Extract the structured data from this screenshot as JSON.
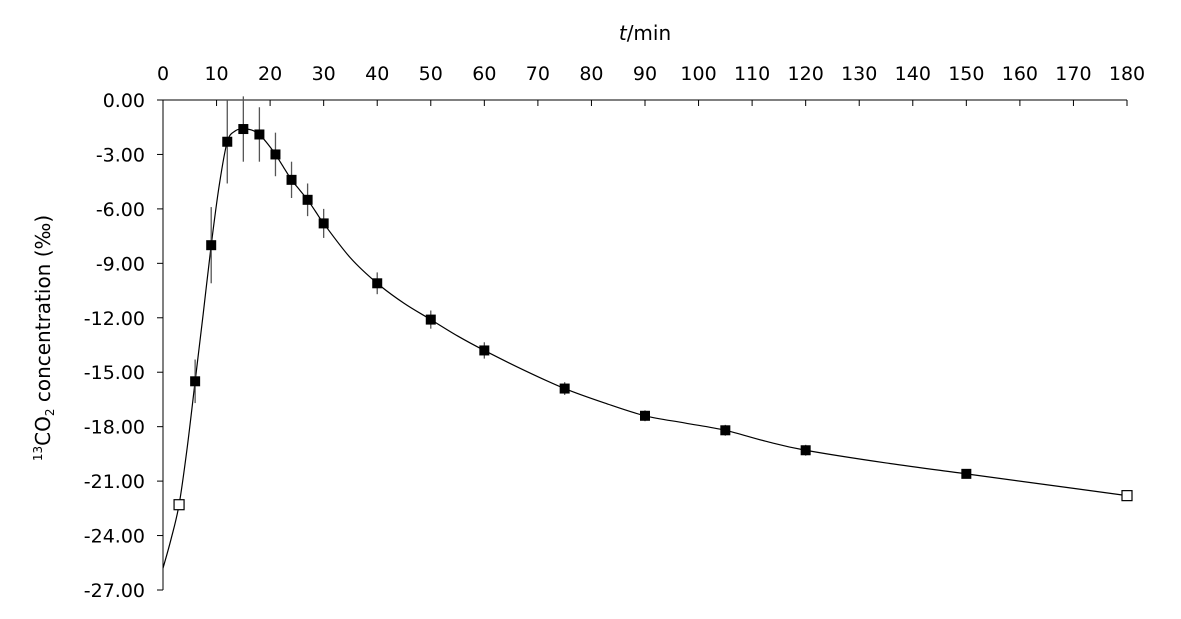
{
  "chart_data": {
    "type": "line",
    "xlabel": {
      "var": "t",
      "unit": "/min"
    },
    "ylabel": {
      "prefix": "13",
      "main": "CO",
      "sub": "2",
      "rest": " concentration (‰)"
    },
    "xlim": [
      0,
      180
    ],
    "ylim": [
      -27,
      0
    ],
    "x_ticks": [
      0,
      10,
      20,
      30,
      40,
      50,
      60,
      70,
      80,
      90,
      100,
      110,
      120,
      130,
      140,
      150,
      160,
      170,
      180
    ],
    "y_ticks": [
      0,
      -3,
      -6,
      -9,
      -12,
      -15,
      -18,
      -21,
      -24,
      -27
    ],
    "y_tick_labels": [
      "0.00",
      "-3.00",
      "-6.00",
      "-9.00",
      "-12.00",
      "-15.00",
      "-18.00",
      "-21.00",
      "-24.00",
      "-27.00"
    ],
    "series": [
      {
        "marker": "filled-square",
        "points": [
          {
            "x": 6,
            "y": -15.5,
            "err": 1.2
          },
          {
            "x": 9,
            "y": -8.0,
            "err": 2.1
          },
          {
            "x": 12,
            "y": -2.3,
            "err": 2.3
          },
          {
            "x": 15,
            "y": -1.6,
            "err": 1.8
          },
          {
            "x": 18,
            "y": -1.9,
            "err": 1.5
          },
          {
            "x": 21,
            "y": -3.0,
            "err": 1.2
          },
          {
            "x": 24,
            "y": -4.4,
            "err": 1.0
          },
          {
            "x": 27,
            "y": -5.5,
            "err": 0.9
          },
          {
            "x": 30,
            "y": -6.8,
            "err": 0.8
          },
          {
            "x": 40,
            "y": -10.1,
            "err": 0.6
          },
          {
            "x": 50,
            "y": -12.1,
            "err": 0.5
          },
          {
            "x": 60,
            "y": -13.8,
            "err": 0.45
          },
          {
            "x": 75,
            "y": -15.9,
            "err": 0.35
          },
          {
            "x": 90,
            "y": -17.4,
            "err": 0.3
          },
          {
            "x": 105,
            "y": -18.2,
            "err": 0.3
          },
          {
            "x": 120,
            "y": -19.3,
            "err": 0.3
          },
          {
            "x": 150,
            "y": -20.6,
            "err": 0.25
          }
        ]
      },
      {
        "marker": "open-square",
        "points": [
          {
            "x": 3,
            "y": -22.3
          },
          {
            "x": 180,
            "y": -21.8
          }
        ]
      }
    ],
    "curve": [
      [
        0,
        -25.8
      ],
      [
        1.5,
        -24.2
      ],
      [
        3,
        -22.3
      ],
      [
        4.5,
        -19.2
      ],
      [
        6,
        -15.5
      ],
      [
        7.5,
        -11.8
      ],
      [
        9,
        -8.0
      ],
      [
        10.5,
        -4.7
      ],
      [
        12,
        -2.3
      ],
      [
        13.5,
        -1.7
      ],
      [
        15,
        -1.6
      ],
      [
        16.5,
        -1.65
      ],
      [
        18,
        -1.9
      ],
      [
        19.5,
        -2.4
      ],
      [
        21,
        -3.0
      ],
      [
        22.5,
        -3.7
      ],
      [
        24,
        -4.4
      ],
      [
        25.5,
        -4.95
      ],
      [
        27,
        -5.5
      ],
      [
        28.5,
        -6.15
      ],
      [
        30,
        -6.8
      ],
      [
        35,
        -8.7
      ],
      [
        40,
        -10.1
      ],
      [
        45,
        -11.2
      ],
      [
        50,
        -12.1
      ],
      [
        55,
        -13.0
      ],
      [
        60,
        -13.8
      ],
      [
        67.5,
        -14.9
      ],
      [
        75,
        -15.9
      ],
      [
        82.5,
        -16.7
      ],
      [
        90,
        -17.4
      ],
      [
        97.5,
        -17.8
      ],
      [
        105,
        -18.2
      ],
      [
        112.5,
        -18.8
      ],
      [
        120,
        -19.3
      ],
      [
        135,
        -20.0
      ],
      [
        150,
        -20.6
      ],
      [
        165,
        -21.2
      ],
      [
        180,
        -21.8
      ]
    ]
  }
}
